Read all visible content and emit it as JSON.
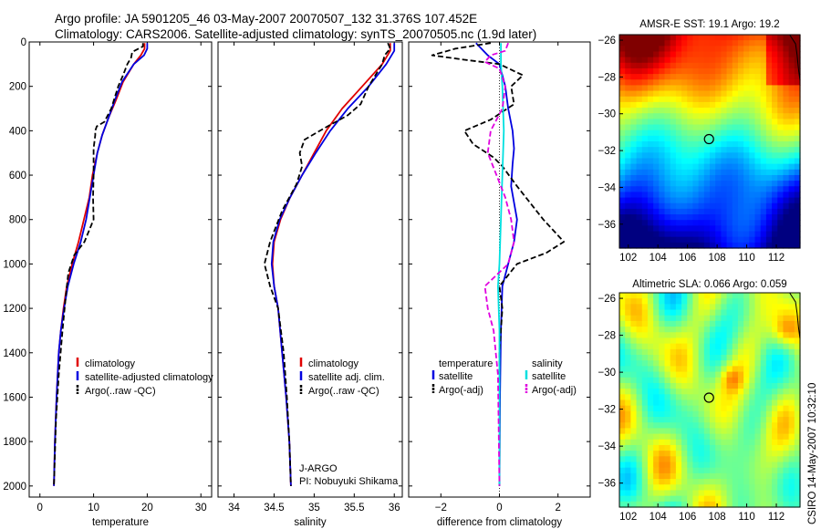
{
  "header": {
    "line1": "Argo profile: JA 5901205_46 03-May-2007 20070507_132 31.376S 107.452E",
    "line2": "Climatology: CARS2006. Satellite-adjusted climatology: synTS_20070505.nc (1.9d later)"
  },
  "footer_vertical": "CSIRO 14-May-2007 10:32:10",
  "colors": {
    "climatology": "#e00000",
    "satellite": "#0000e0",
    "argo": "#000000",
    "sat_salinity": "#00e0e0",
    "argo_salinity": "#e000e0",
    "map_marker": "#000000"
  },
  "chart_data": [
    {
      "type": "line",
      "panel": "temperature",
      "xlabel": "temperature",
      "ylabel": "",
      "xlim": [
        -2,
        32
      ],
      "ylim": [
        2050,
        0
      ],
      "yinverted": true,
      "xticks": [
        0,
        10,
        20,
        30
      ],
      "yticks": [
        0,
        200,
        400,
        600,
        800,
        1000,
        1200,
        1400,
        1600,
        1800,
        2000
      ],
      "legend": [
        "climatology",
        "satellite-adjusted climatology",
        "Argo(..raw -QC)"
      ],
      "legend_placement": "bottom-right",
      "series": [
        {
          "name": "climatology",
          "color": "#e00000",
          "dash": "none",
          "points": [
            [
              19.5,
              5
            ],
            [
              19.5,
              30
            ],
            [
              18.8,
              60
            ],
            [
              17.5,
              100
            ],
            [
              15.5,
              180
            ],
            [
              14.2,
              260
            ],
            [
              12.8,
              340
            ],
            [
              11.6,
              420
            ],
            [
              10.7,
              500
            ],
            [
              9.8,
              600
            ],
            [
              9.2,
              700
            ],
            [
              8.2,
              800
            ],
            [
              7.2,
              900
            ],
            [
              6.0,
              1000
            ],
            [
              5.0,
              1100
            ],
            [
              4.4,
              1200
            ],
            [
              3.9,
              1300
            ],
            [
              3.5,
              1400
            ],
            [
              3.1,
              1600
            ],
            [
              2.8,
              1800
            ],
            [
              2.6,
              2000
            ]
          ]
        },
        {
          "name": "satellite-adjusted climatology",
          "color": "#0000e0",
          "dash": "none",
          "points": [
            [
              20.0,
              5
            ],
            [
              20.0,
              30
            ],
            [
              19.4,
              60
            ],
            [
              17.5,
              100
            ],
            [
              15.3,
              180
            ],
            [
              14.0,
              260
            ],
            [
              12.8,
              340
            ],
            [
              11.6,
              420
            ],
            [
              10.7,
              500
            ],
            [
              10.0,
              600
            ],
            [
              9.3,
              700
            ],
            [
              8.6,
              800
            ],
            [
              7.6,
              900
            ],
            [
              6.3,
              1000
            ],
            [
              5.2,
              1100
            ],
            [
              4.5,
              1200
            ],
            [
              3.9,
              1300
            ],
            [
              3.5,
              1400
            ],
            [
              3.1,
              1600
            ],
            [
              2.8,
              1800
            ],
            [
              2.6,
              2000
            ]
          ]
        },
        {
          "name": "Argo(..raw -QC)",
          "color": "#000000",
          "dash": "6,3",
          "points": [
            [
              19.2,
              5
            ],
            [
              19.2,
              20
            ],
            [
              17.2,
              45
            ],
            [
              17.0,
              70
            ],
            [
              16.3,
              100
            ],
            [
              15.5,
              150
            ],
            [
              14.6,
              200
            ],
            [
              13.3,
              300
            ],
            [
              12.0,
              360
            ],
            [
              10.6,
              380
            ],
            [
              10.3,
              400
            ],
            [
              10.3,
              420
            ],
            [
              10.0,
              480
            ],
            [
              10.0,
              600
            ],
            [
              9.9,
              700
            ],
            [
              10.0,
              800
            ],
            [
              8.3,
              900
            ],
            [
              6.4,
              960
            ],
            [
              5.3,
              1040
            ],
            [
              4.8,
              1150
            ],
            [
              4.2,
              1300
            ],
            [
              3.5,
              1500
            ],
            [
              3.0,
              1700
            ],
            [
              2.6,
              2000
            ]
          ]
        }
      ]
    },
    {
      "type": "line",
      "panel": "salinity",
      "xlabel": "salinity",
      "ylabel": "",
      "xlim": [
        33.8,
        36.1
      ],
      "ylim": [
        2050,
        0
      ],
      "yinverted": true,
      "xticks": [
        34,
        34.5,
        35,
        35.5,
        36
      ],
      "xticklabels": [
        "34",
        "34.5",
        "35",
        "35.5",
        "36"
      ],
      "legend": [
        "climatology",
        "satellite adj. clim.",
        "Argo(..raw -QC)"
      ],
      "legend_placement": "bottom-right",
      "annotation": [
        "J-ARGO",
        "PI: Nobuyuki Shikama"
      ],
      "series": [
        {
          "name": "climatology",
          "color": "#e00000",
          "dash": "none",
          "points": [
            [
              35.95,
              5
            ],
            [
              35.95,
              40
            ],
            [
              35.85,
              100
            ],
            [
              35.6,
              200
            ],
            [
              35.35,
              300
            ],
            [
              35.15,
              400
            ],
            [
              35.0,
              500
            ],
            [
              34.85,
              600
            ],
            [
              34.7,
              700
            ],
            [
              34.58,
              800
            ],
            [
              34.5,
              900
            ],
            [
              34.48,
              1000
            ],
            [
              34.5,
              1100
            ],
            [
              34.55,
              1200
            ],
            [
              34.6,
              1400
            ],
            [
              34.65,
              1600
            ],
            [
              34.69,
              1800
            ],
            [
              34.71,
              2000
            ]
          ]
        },
        {
          "name": "satellite adj. clim.",
          "color": "#0000e0",
          "dash": "none",
          "points": [
            [
              36.0,
              5
            ],
            [
              36.0,
              40
            ],
            [
              35.9,
              100
            ],
            [
              35.68,
              200
            ],
            [
              35.42,
              300
            ],
            [
              35.2,
              400
            ],
            [
              35.02,
              500
            ],
            [
              34.85,
              600
            ],
            [
              34.7,
              700
            ],
            [
              34.57,
              800
            ],
            [
              34.49,
              900
            ],
            [
              34.47,
              1000
            ],
            [
              34.5,
              1100
            ],
            [
              34.55,
              1200
            ],
            [
              34.6,
              1400
            ],
            [
              34.65,
              1600
            ],
            [
              34.69,
              1800
            ],
            [
              34.71,
              2000
            ]
          ]
        },
        {
          "name": "Argo(..raw -QC)",
          "color": "#000000",
          "dash": "6,3",
          "points": [
            [
              35.92,
              5
            ],
            [
              35.95,
              30
            ],
            [
              35.88,
              60
            ],
            [
              35.85,
              100
            ],
            [
              35.68,
              200
            ],
            [
              35.58,
              280
            ],
            [
              35.42,
              330
            ],
            [
              35.12,
              390
            ],
            [
              34.88,
              440
            ],
            [
              34.82,
              500
            ],
            [
              34.85,
              560
            ],
            [
              34.78,
              640
            ],
            [
              34.6,
              760
            ],
            [
              34.45,
              900
            ],
            [
              34.38,
              1000
            ],
            [
              34.45,
              1100
            ],
            [
              34.55,
              1200
            ],
            [
              34.62,
              1400
            ],
            [
              34.66,
              1600
            ],
            [
              34.69,
              1800
            ],
            [
              34.71,
              2000
            ]
          ]
        }
      ]
    },
    {
      "type": "line",
      "panel": "difference",
      "xlabel": "difference from climatology",
      "ylabel": "",
      "xlim": [
        -3.1,
        3.1
      ],
      "ylim": [
        2050,
        0
      ],
      "yinverted": true,
      "xticks": [
        -2,
        0,
        2
      ],
      "legend_headers": [
        "temperature",
        "salinity"
      ],
      "legend": [
        "satellite",
        "Argo(-adj)",
        "satellite",
        "Argo(-adj)"
      ],
      "legend_placement": "bottom",
      "series": [
        {
          "name": "satellite",
          "quantity": "temperature",
          "color": "#0000e0",
          "dash": "none",
          "points": [
            [
              -0.8,
              5
            ],
            [
              -0.4,
              60
            ],
            [
              0.0,
              100
            ],
            [
              0.2,
              200
            ],
            [
              0.3,
              300
            ],
            [
              0.45,
              400
            ],
            [
              0.5,
              480
            ],
            [
              0.45,
              550
            ],
            [
              0.4,
              650
            ],
            [
              0.6,
              800
            ],
            [
              0.5,
              900
            ],
            [
              0.3,
              1000
            ],
            [
              0.1,
              1100
            ],
            [
              0.05,
              1300
            ],
            [
              0.02,
              1600
            ],
            [
              0.0,
              2000
            ]
          ]
        },
        {
          "name": "Argo(-adj)",
          "quantity": "temperature",
          "color": "#000000",
          "dash": "6,3",
          "points": [
            [
              -0.3,
              5
            ],
            [
              -1.5,
              30
            ],
            [
              -2.3,
              60
            ],
            [
              -1.2,
              80
            ],
            [
              0.0,
              100
            ],
            [
              0.8,
              150
            ],
            [
              0.4,
              200
            ],
            [
              0.5,
              280
            ],
            [
              -0.3,
              350
            ],
            [
              -1.2,
              400
            ],
            [
              -0.9,
              460
            ],
            [
              -0.2,
              520
            ],
            [
              0.1,
              560
            ],
            [
              0.6,
              650
            ],
            [
              1.5,
              800
            ],
            [
              2.2,
              900
            ],
            [
              1.6,
              950
            ],
            [
              0.6,
              1000
            ],
            [
              0.0,
              1100
            ],
            [
              0.1,
              1200
            ],
            [
              0.0,
              1400
            ],
            [
              0.0,
              2000
            ]
          ]
        },
        {
          "name": "satellite",
          "quantity": "salinity",
          "color": "#00e0e0",
          "dash": "none",
          "points": [
            [
              0.05,
              5
            ],
            [
              0.05,
              100
            ],
            [
              0.1,
              200
            ],
            [
              0.15,
              400
            ],
            [
              0.1,
              600
            ],
            [
              0.05,
              800
            ],
            [
              0.0,
              1000
            ],
            [
              -0.05,
              1100
            ],
            [
              0.0,
              1300
            ],
            [
              0.0,
              2000
            ]
          ]
        },
        {
          "name": "Argo(-adj)",
          "quantity": "salinity",
          "color": "#e000e0",
          "dash": "6,3",
          "points": [
            [
              0.3,
              5
            ],
            [
              0.2,
              40
            ],
            [
              -0.3,
              60
            ],
            [
              -0.5,
              90
            ],
            [
              0.0,
              120
            ],
            [
              0.2,
              200
            ],
            [
              0.1,
              300
            ],
            [
              -0.3,
              400
            ],
            [
              -0.4,
              500
            ],
            [
              -0.1,
              600
            ],
            [
              0.2,
              700
            ],
            [
              0.4,
              800
            ],
            [
              0.5,
              900
            ],
            [
              0.3,
              1000
            ],
            [
              -0.5,
              1100
            ],
            [
              -0.4,
              1200
            ],
            [
              -0.2,
              1300
            ],
            [
              -0.05,
              1500
            ],
            [
              0.0,
              2000
            ]
          ]
        }
      ]
    },
    {
      "type": "heatmap",
      "panel": "map-sst",
      "title": "AMSR-E SST: 19.1 Argo: 19.2",
      "xlim": [
        101.4,
        113.6
      ],
      "ylim": [
        -37.3,
        -25.7
      ],
      "xticks": [
        102,
        104,
        106,
        108,
        110,
        112
      ],
      "yticks": [
        -26,
        -28,
        -30,
        -32,
        -34,
        -36
      ],
      "marker": [
        107.452,
        -31.376
      ],
      "colormap": "jet",
      "coast": [
        [
          112.9,
          -25.7
        ],
        [
          113.3,
          -26.2
        ],
        [
          113.4,
          -26.8
        ],
        [
          113.5,
          -27.6
        ],
        [
          113.6,
          -28.2
        ]
      ]
    },
    {
      "type": "heatmap",
      "panel": "map-sla",
      "title": "Altimetric SLA: 0.066 Argo: 0.059",
      "xlim": [
        101.4,
        113.6
      ],
      "ylim": [
        -37.3,
        -25.7
      ],
      "xticks": [
        102,
        104,
        106,
        108,
        110,
        112
      ],
      "yticks": [
        -26,
        -28,
        -30,
        -32,
        -34,
        -36
      ],
      "marker": [
        107.452,
        -31.376
      ],
      "colormap": "jet",
      "coast": [
        [
          112.9,
          -25.7
        ],
        [
          113.3,
          -26.2
        ],
        [
          113.4,
          -26.8
        ],
        [
          113.5,
          -27.6
        ],
        [
          113.6,
          -28.2
        ]
      ]
    }
  ]
}
